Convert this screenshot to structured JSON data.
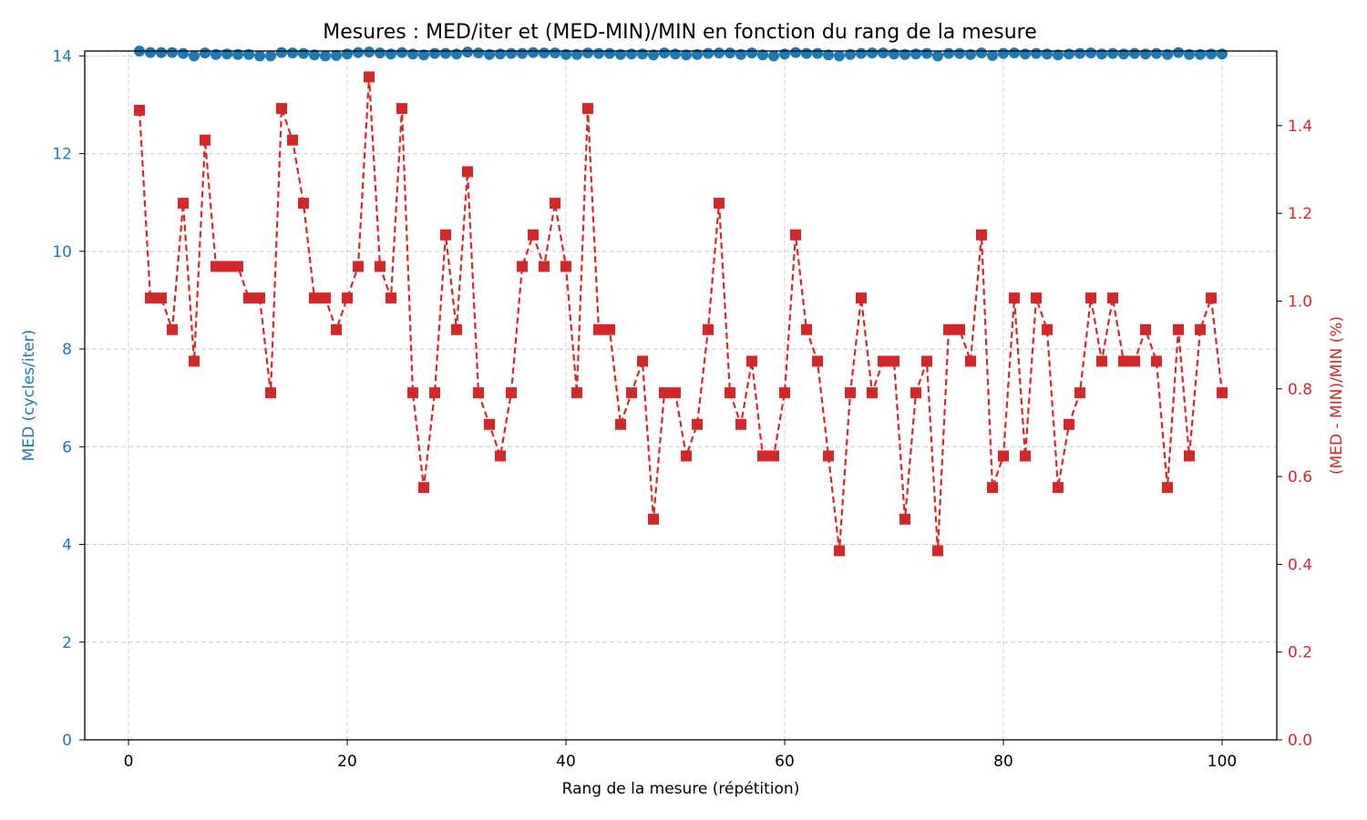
{
  "chart_data": {
    "type": "line",
    "title": "Mesures : MED/iter et (MED-MIN)/MIN en fonction du rang de la mesure",
    "xlabel": "Rang de la mesure (répétition)",
    "ylabel_left": "MED (cycles/iter)",
    "ylabel_right": "(MED - MIN)/MIN (%)",
    "xlim": [
      -4,
      105
    ],
    "ylim_left": [
      0,
      14.1
    ],
    "ylim_right": [
      0,
      1.57
    ],
    "x_ticks": [
      0,
      20,
      40,
      60,
      80,
      100
    ],
    "y_left_ticks": [
      0,
      2,
      4,
      6,
      8,
      10,
      12,
      14
    ],
    "y_right_ticks": [
      "0.0",
      "0.2",
      "0.4",
      "0.6",
      "0.8",
      "1.0",
      "1.2",
      "1.4"
    ],
    "grid": true,
    "colors": {
      "left": "#1f77b4",
      "right": "#d62728"
    },
    "x": [
      1,
      2,
      3,
      4,
      5,
      6,
      7,
      8,
      9,
      10,
      11,
      12,
      13,
      14,
      15,
      16,
      17,
      18,
      19,
      20,
      21,
      22,
      23,
      24,
      25,
      26,
      27,
      28,
      29,
      30,
      31,
      32,
      33,
      34,
      35,
      36,
      37,
      38,
      39,
      40,
      41,
      42,
      43,
      44,
      45,
      46,
      47,
      48,
      49,
      50,
      51,
      52,
      53,
      54,
      55,
      56,
      57,
      58,
      59,
      60,
      61,
      62,
      63,
      64,
      65,
      66,
      67,
      68,
      69,
      70,
      71,
      72,
      73,
      74,
      75,
      76,
      77,
      78,
      79,
      80,
      81,
      82,
      83,
      84,
      85,
      86,
      87,
      88,
      89,
      90,
      91,
      92,
      93,
      94,
      95,
      96,
      97,
      98,
      99,
      100
    ],
    "series": [
      {
        "axis": "left",
        "marker": "circle",
        "style": "solid",
        "values": [
          14.1,
          14.07,
          14.07,
          14.07,
          14.05,
          14.0,
          14.06,
          14.03,
          14.04,
          14.03,
          14.03,
          14.0,
          14.0,
          14.07,
          14.06,
          14.05,
          14.02,
          14.0,
          14.01,
          14.04,
          14.07,
          14.08,
          14.06,
          14.04,
          14.07,
          14.04,
          14.02,
          14.05,
          14.05,
          14.04,
          14.08,
          14.06,
          14.03,
          14.04,
          14.05,
          14.05,
          14.07,
          14.06,
          14.06,
          14.03,
          14.03,
          14.06,
          14.05,
          14.05,
          14.03,
          14.04,
          14.04,
          14.02,
          14.06,
          14.04,
          14.02,
          14.03,
          14.05,
          14.06,
          14.06,
          14.03,
          14.06,
          14.02,
          14.0,
          14.04,
          14.07,
          14.05,
          14.05,
          14.02,
          14.0,
          14.03,
          14.05,
          14.06,
          14.06,
          14.04,
          14.03,
          14.04,
          14.05,
          14.0,
          14.05,
          14.05,
          14.03,
          14.06,
          14.01,
          14.05,
          14.06,
          14.04,
          14.05,
          14.04,
          14.02,
          14.04,
          14.05,
          14.06,
          14.04,
          14.05,
          14.04,
          14.05,
          14.04,
          14.05,
          14.03,
          14.07,
          14.03,
          14.03,
          14.04,
          14.04
        ]
      },
      {
        "axis": "right",
        "marker": "square",
        "style": "dashed",
        "values": [
          1.435,
          1.007,
          1.007,
          0.935,
          1.223,
          0.863,
          1.367,
          1.079,
          1.079,
          1.079,
          1.007,
          1.007,
          0.791,
          1.439,
          1.367,
          1.223,
          1.007,
          1.007,
          0.935,
          1.007,
          1.079,
          1.511,
          1.079,
          1.007,
          1.439,
          0.791,
          0.575,
          0.791,
          1.151,
          0.935,
          1.295,
          0.791,
          0.719,
          0.647,
          0.791,
          1.079,
          1.151,
          1.079,
          1.223,
          1.079,
          0.791,
          1.439,
          0.935,
          0.935,
          0.719,
          0.791,
          0.863,
          0.503,
          0.791,
          0.791,
          0.647,
          0.719,
          0.935,
          1.223,
          0.791,
          0.719,
          0.863,
          0.647,
          0.647,
          0.791,
          1.151,
          0.935,
          0.863,
          0.647,
          0.431,
          0.791,
          1.007,
          0.791,
          0.863,
          0.863,
          0.503,
          0.791,
          0.863,
          0.431,
          0.935,
          0.935,
          0.863,
          1.151,
          0.575,
          0.647,
          1.007,
          0.647,
          1.007,
          0.935,
          0.575,
          0.719,
          0.791,
          1.007,
          0.863,
          1.007,
          0.863,
          0.863,
          0.935,
          0.863,
          0.575,
          0.935,
          0.647,
          0.935,
          1.007,
          0.791
        ]
      }
    ]
  }
}
